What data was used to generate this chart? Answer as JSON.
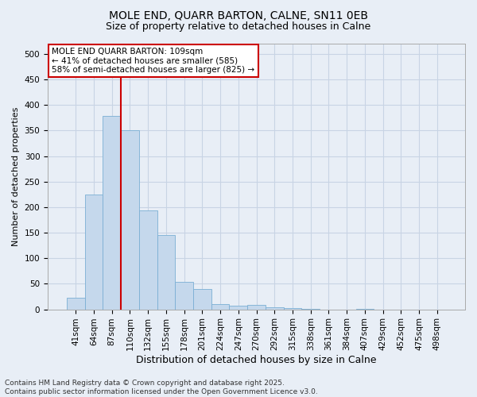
{
  "title_line1": "MOLE END, QUARR BARTON, CALNE, SN11 0EB",
  "title_line2": "Size of property relative to detached houses in Calne",
  "xlabel": "Distribution of detached houses by size in Calne",
  "ylabel": "Number of detached properties",
  "categories": [
    "41sqm",
    "64sqm",
    "87sqm",
    "110sqm",
    "132sqm",
    "155sqm",
    "178sqm",
    "201sqm",
    "224sqm",
    "247sqm",
    "270sqm",
    "292sqm",
    "315sqm",
    "338sqm",
    "361sqm",
    "384sqm",
    "407sqm",
    "429sqm",
    "452sqm",
    "475sqm",
    "498sqm"
  ],
  "values": [
    22,
    224,
    378,
    351,
    193,
    145,
    54,
    40,
    11,
    7,
    8,
    4,
    2,
    1,
    0,
    0,
    1,
    0,
    0,
    0,
    0
  ],
  "bar_color": "#c5d8ec",
  "bar_edge_color": "#7bafd4",
  "grid_color": "#c8d4e4",
  "background_color": "#e8eef6",
  "vline_x": 2.5,
  "vline_color": "#cc0000",
  "annotation_text": "MOLE END QUARR BARTON: 109sqm\n← 41% of detached houses are smaller (585)\n58% of semi-detached houses are larger (825) →",
  "annotation_box_facecolor": "#ffffff",
  "annotation_box_edgecolor": "#cc0000",
  "footnote": "Contains HM Land Registry data © Crown copyright and database right 2025.\nContains public sector information licensed under the Open Government Licence v3.0.",
  "ylim": [
    0,
    520
  ],
  "yticks": [
    0,
    50,
    100,
    150,
    200,
    250,
    300,
    350,
    400,
    450,
    500
  ],
  "title1_fontsize": 10,
  "title2_fontsize": 9,
  "tick_fontsize": 7.5,
  "ylabel_fontsize": 8,
  "xlabel_fontsize": 9
}
